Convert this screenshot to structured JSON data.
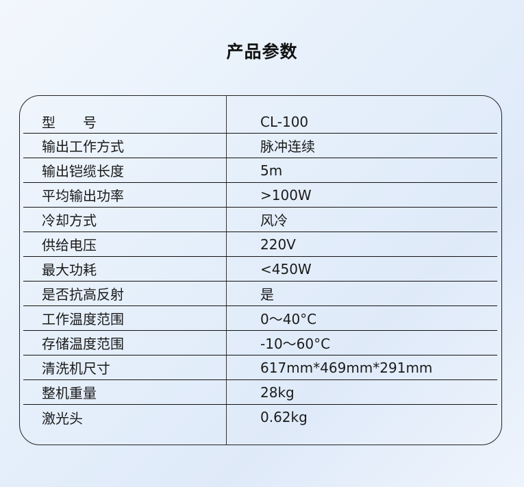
{
  "title": "产品参数",
  "rows": [
    {
      "label": "型　　号",
      "value": "CL-100"
    },
    {
      "label": "输出工作方式",
      "value": "脉冲连续"
    },
    {
      "label": "输出铠缆长度",
      "value": "5m"
    },
    {
      "label": "平均输出功率",
      "value": ">100W"
    },
    {
      "label": "冷却方式",
      "value": "风冷"
    },
    {
      "label": "供给电压",
      "value": "220V"
    },
    {
      "label": "最大功耗",
      "value": "<450W"
    },
    {
      "label": "是否抗高反射",
      "value": "是"
    },
    {
      "label": "工作温度范围",
      "value": "0～40°C"
    },
    {
      "label": "存储温度范围",
      "value": "-10～60°C"
    },
    {
      "label": "清洗机尺寸",
      "value": "617mm*469mm*291mm"
    },
    {
      "label": "整机重量",
      "value": "28kg"
    },
    {
      "label": "激光头",
      "value": "0.62kg"
    }
  ]
}
